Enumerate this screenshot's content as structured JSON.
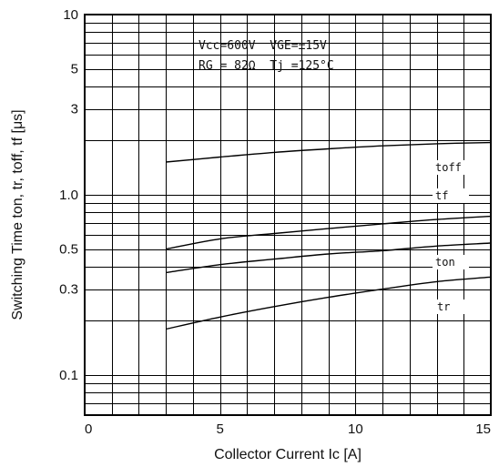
{
  "chart_data": {
    "type": "line",
    "xlabel": "Collector Current Ic [A]",
    "ylabel": "Switching Time ton, tr, toff, tf [μs]",
    "xlim": [
      0,
      15
    ],
    "ylim": [
      0.05,
      10
    ],
    "yscale": "log",
    "grid": true,
    "x_ticks": [
      "0",
      "5",
      "10",
      "15"
    ],
    "y_ticks": [
      "0.1",
      "0.3",
      "0.5",
      "1.0",
      "3",
      "5",
      "10"
    ],
    "conditions": [
      "Vcc=600V  VGE=±15V",
      "RG = 82Ω  Tj =125°C"
    ],
    "series": [
      {
        "name": "toff",
        "x": [
          3,
          5,
          7,
          9,
          11,
          13,
          15
        ],
        "values": [
          1.52,
          1.62,
          1.72,
          1.8,
          1.87,
          1.92,
          1.95
        ]
      },
      {
        "name": "tf",
        "x": [
          3,
          5,
          7,
          9,
          11,
          13,
          15
        ],
        "values": [
          0.5,
          0.57,
          0.61,
          0.65,
          0.69,
          0.73,
          0.76
        ]
      },
      {
        "name": "ton",
        "x": [
          3,
          5,
          7,
          9,
          11,
          13,
          15
        ],
        "values": [
          0.37,
          0.41,
          0.44,
          0.47,
          0.49,
          0.52,
          0.54
        ]
      },
      {
        "name": "tr",
        "x": [
          3,
          5,
          7,
          9,
          11,
          13,
          15
        ],
        "values": [
          0.18,
          0.21,
          0.24,
          0.27,
          0.3,
          0.33,
          0.35
        ]
      }
    ]
  }
}
